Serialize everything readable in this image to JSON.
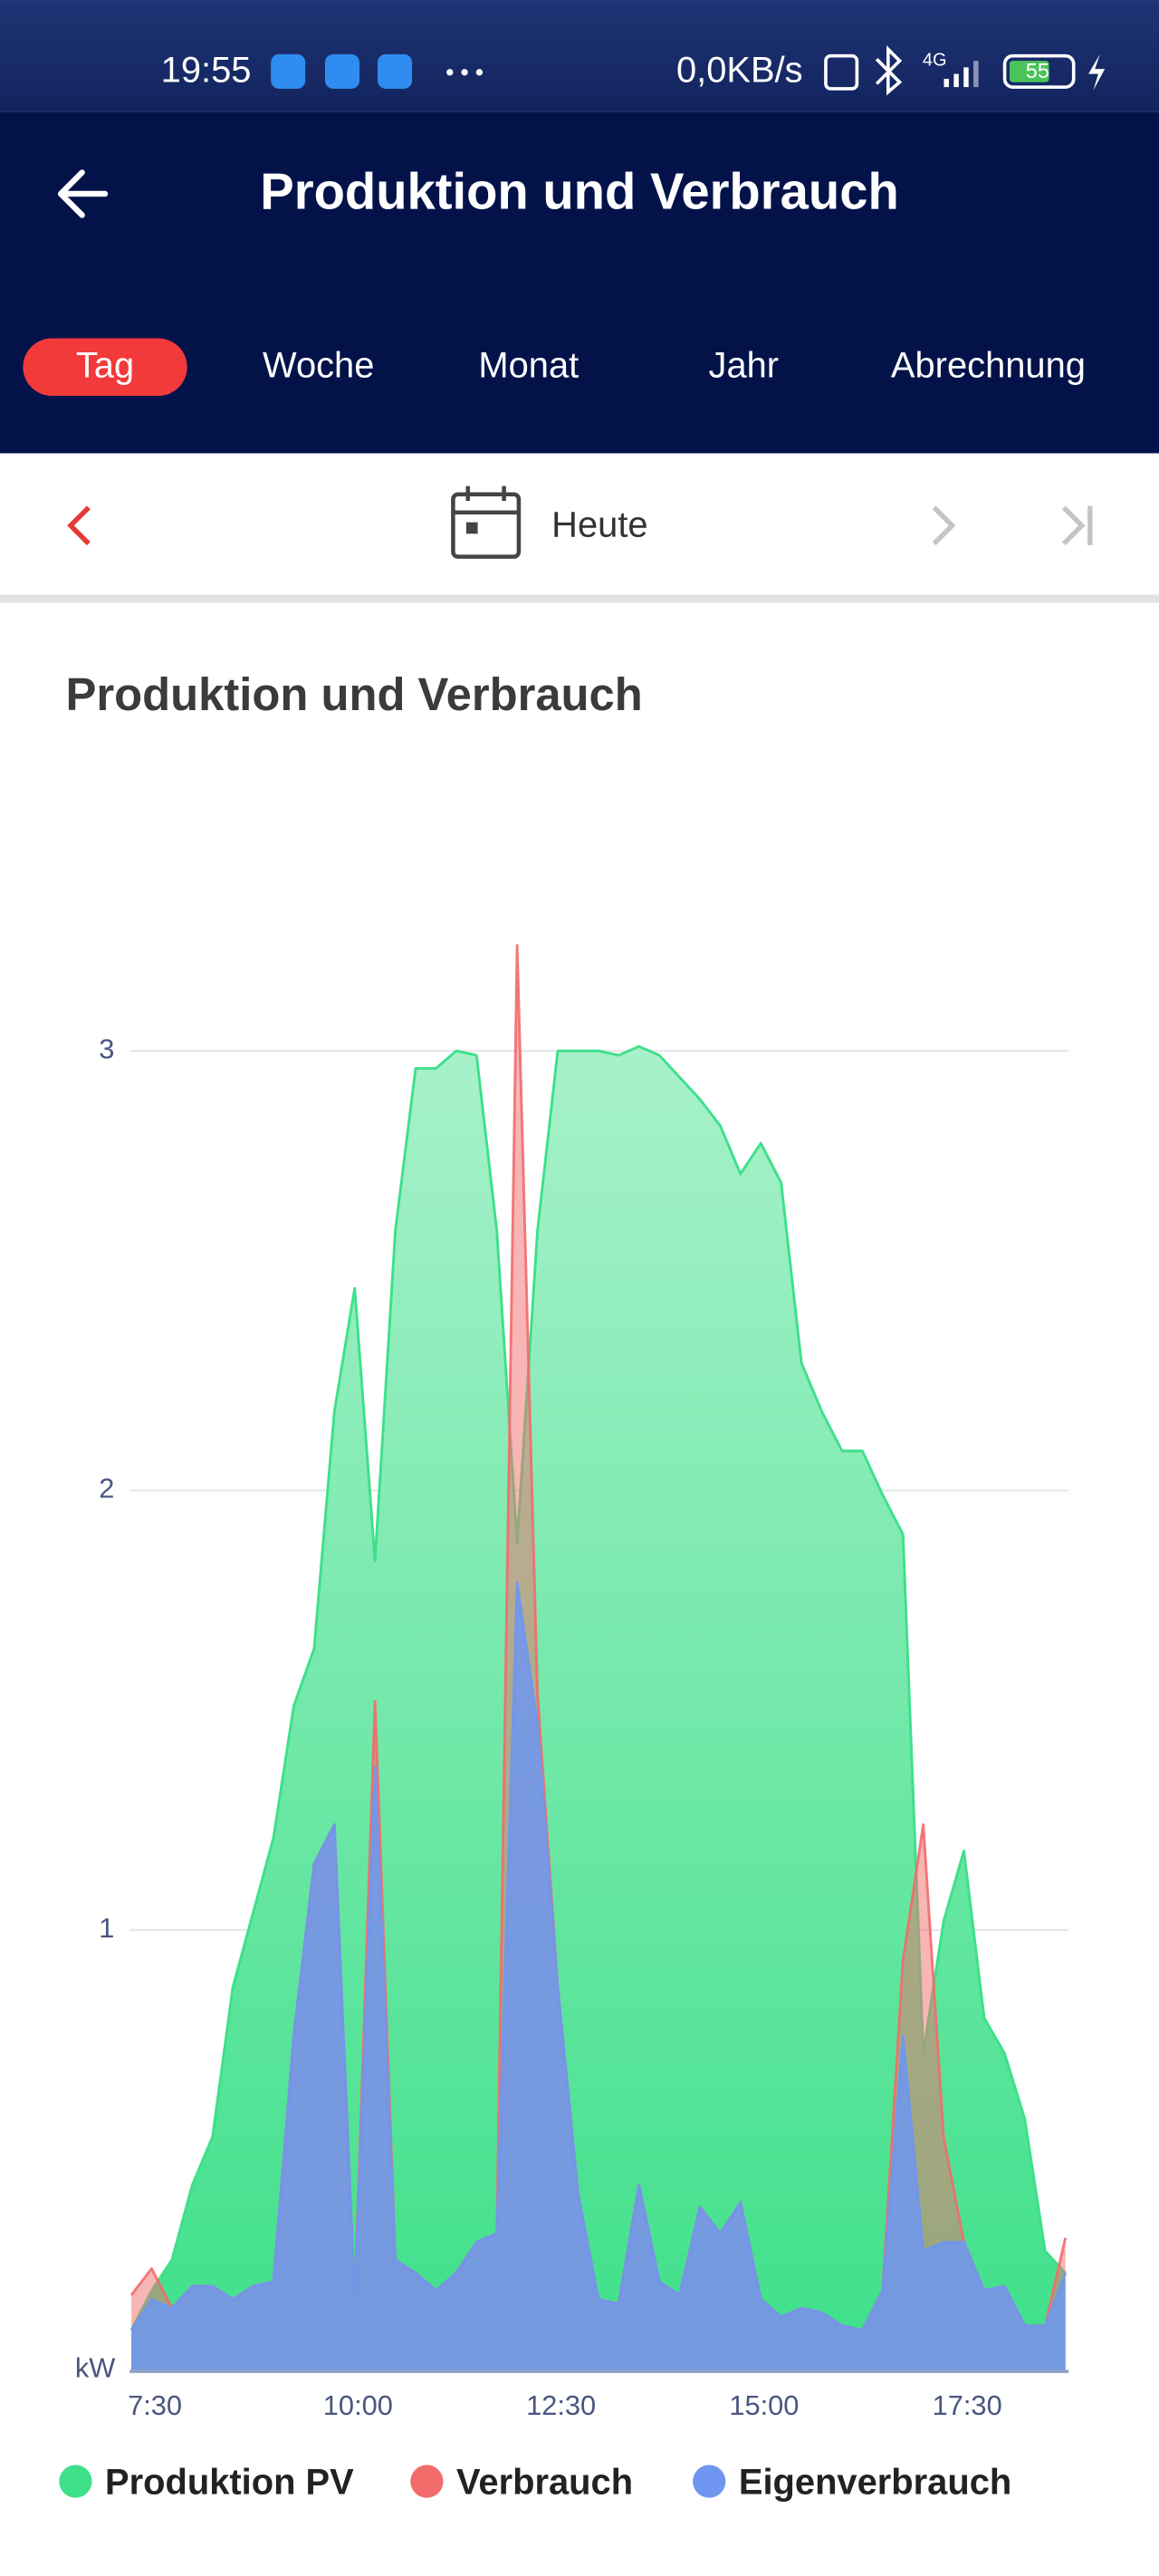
{
  "status_bar": {
    "time": "19:55",
    "speed": "0,0KB/s",
    "network_type": "4G",
    "battery": "55"
  },
  "header": {
    "title": "Produktion und Verbrauch"
  },
  "tabs": [
    "Tag",
    "Woche",
    "Monat",
    "Jahr",
    "Abrechnung"
  ],
  "selected_tab_index": 0,
  "date_nav": {
    "label": "Heute"
  },
  "chart_data": {
    "type": "area",
    "title": "Produktion und Verbrauch",
    "y_label": "kW",
    "x": [
      7.25,
      7.5,
      7.75,
      8,
      8.25,
      8.5,
      8.75,
      9,
      9.25,
      9.5,
      9.75,
      10,
      10.25,
      10.5,
      10.75,
      11,
      11.25,
      11.5,
      11.75,
      12,
      12.25,
      12.5,
      12.75,
      13,
      13.25,
      13.5,
      13.75,
      14,
      14.25,
      14.5,
      14.75,
      15,
      15.25,
      15.5,
      15.75,
      16,
      16.25,
      16.5,
      16.75,
      17,
      17.25,
      17.5,
      17.75,
      18,
      18.25,
      18.5,
      18.75
    ],
    "xlim": [
      7.25,
      18.75
    ],
    "xticks": [
      {
        "value": 7.5,
        "label": "7:30"
      },
      {
        "value": 10,
        "label": "10:00"
      },
      {
        "value": 12.5,
        "label": "12:30"
      },
      {
        "value": 15,
        "label": "15:00"
      },
      {
        "value": 17.5,
        "label": "17:30"
      }
    ],
    "ylim": [
      0,
      3.3
    ],
    "yticks": [
      1,
      2,
      3
    ],
    "grid": true,
    "legend": "bottom",
    "series": [
      {
        "name": "Produktion PV",
        "color": "#3ee08a",
        "values": [
          0.09,
          0.18,
          0.25,
          0.42,
          0.53,
          0.87,
          1.04,
          1.21,
          1.51,
          1.64,
          2.18,
          2.46,
          1.84,
          2.59,
          2.96,
          2.96,
          3.0,
          2.99,
          2.59,
          1.88,
          2.59,
          3.0,
          3.0,
          3.0,
          2.99,
          3.01,
          2.99,
          2.94,
          2.89,
          2.83,
          2.72,
          2.79,
          2.7,
          2.29,
          2.18,
          2.09,
          2.09,
          1.99,
          1.9,
          0.72,
          1.02,
          1.18,
          0.8,
          0.72,
          0.57,
          0.27,
          0.22
        ]
      },
      {
        "name": "Verbrauch",
        "color": "#f26b6b",
        "values": [
          0.17,
          0.23,
          0.14,
          0.19,
          0.19,
          0.16,
          0.19,
          0.2,
          0.76,
          1.15,
          1.24,
          0.16,
          1.52,
          0.25,
          0.22,
          0.18,
          0.22,
          0.29,
          0.31,
          3.24,
          1.54,
          0.87,
          0.4,
          0.16,
          0.15,
          0.42,
          0.2,
          0.17,
          0.37,
          0.31,
          0.38,
          0.16,
          0.12,
          0.14,
          0.13,
          0.1,
          0.09,
          0.18,
          0.93,
          1.24,
          0.53,
          0.29,
          0.18,
          0.19,
          0.1,
          0.1,
          0.3
        ]
      },
      {
        "name": "Eigenverbrauch",
        "color": "#6f96f0",
        "values": [
          0.09,
          0.16,
          0.14,
          0.19,
          0.19,
          0.16,
          0.19,
          0.2,
          0.76,
          1.15,
          1.24,
          0.16,
          1.37,
          0.25,
          0.22,
          0.18,
          0.22,
          0.29,
          0.31,
          1.79,
          1.47,
          0.87,
          0.4,
          0.16,
          0.15,
          0.42,
          0.2,
          0.17,
          0.37,
          0.31,
          0.38,
          0.16,
          0.12,
          0.14,
          0.13,
          0.1,
          0.09,
          0.18,
          0.76,
          0.27,
          0.29,
          0.29,
          0.18,
          0.19,
          0.1,
          0.1,
          0.22
        ]
      }
    ]
  }
}
